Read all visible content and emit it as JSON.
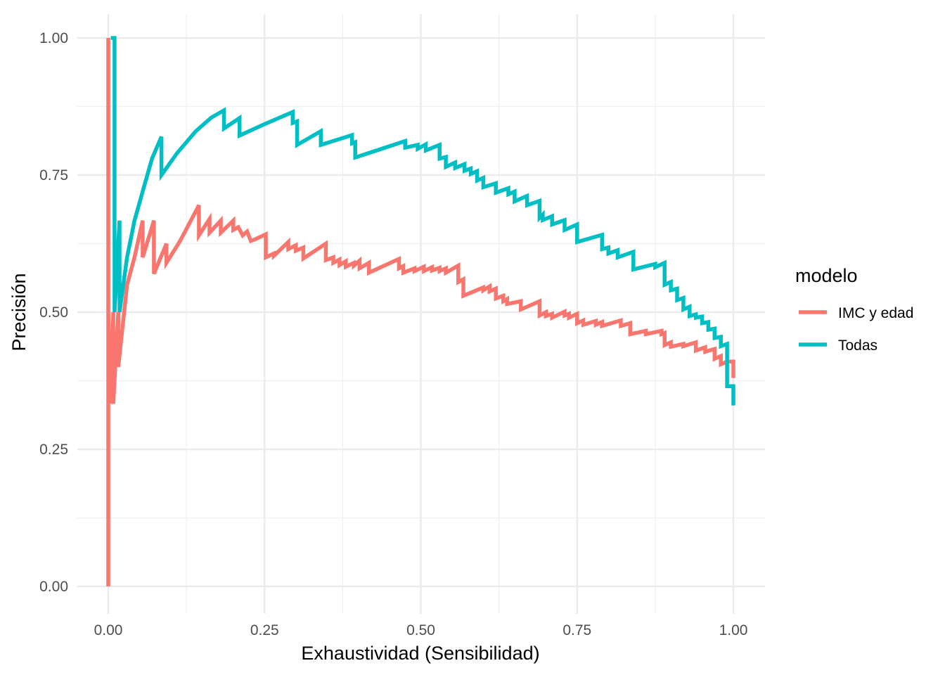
{
  "chart_data": {
    "type": "line",
    "xlabel": "Exhaustividad (Sensibilidad)",
    "ylabel": "Precisión",
    "xlim": [
      0,
      1
    ],
    "ylim": [
      0,
      1
    ],
    "x_ticks": [
      "0.00",
      "0.25",
      "0.50",
      "0.75",
      "1.00"
    ],
    "y_ticks": [
      "0.00",
      "0.25",
      "0.50",
      "0.75",
      "1.00"
    ],
    "grid": true,
    "legend": {
      "title": "modelo",
      "position": "right",
      "entries": [
        "IMC y edad",
        "Todas"
      ]
    },
    "series": [
      {
        "name": "IMC y edad",
        "color": "#F8766D",
        "points": [
          [
            0.0,
            0.0
          ],
          [
            0.0,
            1.0
          ],
          [
            0.0,
            0.5
          ],
          [
            0.004,
            0.333
          ],
          [
            0.008,
            0.5
          ],
          [
            0.008,
            0.333
          ],
          [
            0.016,
            0.5
          ],
          [
            0.016,
            0.4
          ],
          [
            0.03,
            0.55
          ],
          [
            0.042,
            0.6
          ],
          [
            0.055,
            0.667
          ],
          [
            0.055,
            0.6
          ],
          [
            0.073,
            0.667
          ],
          [
            0.073,
            0.57
          ],
          [
            0.093,
            0.625
          ],
          [
            0.093,
            0.59
          ],
          [
            0.115,
            0.63
          ],
          [
            0.145,
            0.695
          ],
          [
            0.145,
            0.64
          ],
          [
            0.162,
            0.67
          ],
          [
            0.162,
            0.645
          ],
          [
            0.18,
            0.667
          ],
          [
            0.18,
            0.645
          ],
          [
            0.2,
            0.667
          ],
          [
            0.2,
            0.65
          ],
          [
            0.208,
            0.655
          ],
          [
            0.215,
            0.64
          ],
          [
            0.222,
            0.647
          ],
          [
            0.228,
            0.63
          ],
          [
            0.235,
            0.633
          ],
          [
            0.252,
            0.642
          ],
          [
            0.252,
            0.6
          ],
          [
            0.265,
            0.607
          ],
          [
            0.265,
            0.603
          ],
          [
            0.288,
            0.628
          ],
          [
            0.288,
            0.615
          ],
          [
            0.3,
            0.622
          ],
          [
            0.3,
            0.612
          ],
          [
            0.312,
            0.618
          ],
          [
            0.312,
            0.598
          ],
          [
            0.348,
            0.625
          ],
          [
            0.348,
            0.595
          ],
          [
            0.36,
            0.6
          ],
          [
            0.36,
            0.59
          ],
          [
            0.37,
            0.596
          ],
          [
            0.37,
            0.586
          ],
          [
            0.38,
            0.593
          ],
          [
            0.38,
            0.583
          ],
          [
            0.393,
            0.59
          ],
          [
            0.393,
            0.585
          ],
          [
            0.402,
            0.594
          ],
          [
            0.402,
            0.58
          ],
          [
            0.417,
            0.59
          ],
          [
            0.417,
            0.572
          ],
          [
            0.465,
            0.597
          ],
          [
            0.465,
            0.58
          ],
          [
            0.472,
            0.584
          ],
          [
            0.472,
            0.572
          ],
          [
            0.49,
            0.58
          ],
          [
            0.49,
            0.575
          ],
          [
            0.505,
            0.583
          ],
          [
            0.505,
            0.575
          ],
          [
            0.518,
            0.582
          ],
          [
            0.518,
            0.576
          ],
          [
            0.53,
            0.581
          ],
          [
            0.53,
            0.575
          ],
          [
            0.54,
            0.58
          ],
          [
            0.54,
            0.572
          ],
          [
            0.56,
            0.585
          ],
          [
            0.56,
            0.555
          ],
          [
            0.568,
            0.56
          ],
          [
            0.568,
            0.53
          ],
          [
            0.6,
            0.545
          ],
          [
            0.6,
            0.54
          ],
          [
            0.61,
            0.547
          ],
          [
            0.61,
            0.538
          ],
          [
            0.62,
            0.543
          ],
          [
            0.62,
            0.525
          ],
          [
            0.632,
            0.53
          ],
          [
            0.632,
            0.52
          ],
          [
            0.638,
            0.524
          ],
          [
            0.638,
            0.515
          ],
          [
            0.66,
            0.52
          ],
          [
            0.66,
            0.505
          ],
          [
            0.69,
            0.52
          ],
          [
            0.69,
            0.494
          ],
          [
            0.7,
            0.5
          ],
          [
            0.7,
            0.493
          ],
          [
            0.71,
            0.497
          ],
          [
            0.71,
            0.49
          ],
          [
            0.73,
            0.501
          ],
          [
            0.73,
            0.494
          ],
          [
            0.737,
            0.497
          ],
          [
            0.737,
            0.49
          ],
          [
            0.75,
            0.497
          ],
          [
            0.75,
            0.48
          ],
          [
            0.76,
            0.485
          ],
          [
            0.76,
            0.477
          ],
          [
            0.78,
            0.484
          ],
          [
            0.78,
            0.477
          ],
          [
            0.79,
            0.482
          ],
          [
            0.79,
            0.475
          ],
          [
            0.82,
            0.485
          ],
          [
            0.82,
            0.475
          ],
          [
            0.835,
            0.48
          ],
          [
            0.835,
            0.46
          ],
          [
            0.86,
            0.466
          ],
          [
            0.86,
            0.46
          ],
          [
            0.885,
            0.466
          ],
          [
            0.885,
            0.46
          ],
          [
            0.89,
            0.462
          ],
          [
            0.89,
            0.44
          ],
          [
            0.9,
            0.445
          ],
          [
            0.9,
            0.437
          ],
          [
            0.92,
            0.442
          ],
          [
            0.92,
            0.438
          ],
          [
            0.94,
            0.445
          ],
          [
            0.94,
            0.43
          ],
          [
            0.955,
            0.436
          ],
          [
            0.955,
            0.428
          ],
          [
            0.97,
            0.433
          ],
          [
            0.97,
            0.415
          ],
          [
            0.98,
            0.42
          ],
          [
            0.98,
            0.405
          ],
          [
            0.99,
            0.41
          ],
          [
            1.0,
            0.41
          ],
          [
            1.0,
            0.38
          ]
        ]
      },
      {
        "name": "Todas",
        "color": "#00BFC4",
        "points": [
          [
            0.004,
            1.0
          ],
          [
            0.01,
            1.0
          ],
          [
            0.01,
            0.5
          ],
          [
            0.018,
            0.667
          ],
          [
            0.018,
            0.5
          ],
          [
            0.03,
            0.6
          ],
          [
            0.042,
            0.667
          ],
          [
            0.055,
            0.72
          ],
          [
            0.07,
            0.78
          ],
          [
            0.085,
            0.82
          ],
          [
            0.085,
            0.75
          ],
          [
            0.11,
            0.79
          ],
          [
            0.14,
            0.83
          ],
          [
            0.165,
            0.855
          ],
          [
            0.185,
            0.868
          ],
          [
            0.185,
            0.835
          ],
          [
            0.21,
            0.854
          ],
          [
            0.21,
            0.822
          ],
          [
            0.25,
            0.843
          ],
          [
            0.295,
            0.865
          ],
          [
            0.295,
            0.845
          ],
          [
            0.302,
            0.848
          ],
          [
            0.302,
            0.805
          ],
          [
            0.34,
            0.83
          ],
          [
            0.34,
            0.805
          ],
          [
            0.39,
            0.823
          ],
          [
            0.39,
            0.808
          ],
          [
            0.395,
            0.81
          ],
          [
            0.395,
            0.782
          ],
          [
            0.475,
            0.812
          ],
          [
            0.475,
            0.8
          ],
          [
            0.495,
            0.805
          ],
          [
            0.495,
            0.798
          ],
          [
            0.508,
            0.806
          ],
          [
            0.508,
            0.795
          ],
          [
            0.53,
            0.805
          ],
          [
            0.53,
            0.78
          ],
          [
            0.54,
            0.783
          ],
          [
            0.54,
            0.765
          ],
          [
            0.555,
            0.773
          ],
          [
            0.555,
            0.763
          ],
          [
            0.57,
            0.77
          ],
          [
            0.57,
            0.758
          ],
          [
            0.58,
            0.762
          ],
          [
            0.58,
            0.752
          ],
          [
            0.59,
            0.757
          ],
          [
            0.59,
            0.74
          ],
          [
            0.6,
            0.745
          ],
          [
            0.6,
            0.728
          ],
          [
            0.62,
            0.735
          ],
          [
            0.62,
            0.718
          ],
          [
            0.64,
            0.726
          ],
          [
            0.64,
            0.715
          ],
          [
            0.65,
            0.72
          ],
          [
            0.65,
            0.702
          ],
          [
            0.67,
            0.712
          ],
          [
            0.67,
            0.695
          ],
          [
            0.69,
            0.703
          ],
          [
            0.69,
            0.672
          ],
          [
            0.695,
            0.678
          ],
          [
            0.695,
            0.668
          ],
          [
            0.71,
            0.675
          ],
          [
            0.71,
            0.66
          ],
          [
            0.73,
            0.668
          ],
          [
            0.73,
            0.65
          ],
          [
            0.75,
            0.66
          ],
          [
            0.75,
            0.628
          ],
          [
            0.79,
            0.641
          ],
          [
            0.79,
            0.615
          ],
          [
            0.8,
            0.618
          ],
          [
            0.8,
            0.607
          ],
          [
            0.815,
            0.613
          ],
          [
            0.815,
            0.6
          ],
          [
            0.84,
            0.61
          ],
          [
            0.84,
            0.578
          ],
          [
            0.875,
            0.588
          ],
          [
            0.875,
            0.582
          ],
          [
            0.89,
            0.59
          ],
          [
            0.89,
            0.55
          ],
          [
            0.9,
            0.555
          ],
          [
            0.9,
            0.54
          ],
          [
            0.91,
            0.543
          ],
          [
            0.91,
            0.522
          ],
          [
            0.92,
            0.526
          ],
          [
            0.92,
            0.505
          ],
          [
            0.93,
            0.51
          ],
          [
            0.93,
            0.493
          ],
          [
            0.94,
            0.496
          ],
          [
            0.94,
            0.49
          ],
          [
            0.95,
            0.492
          ],
          [
            0.95,
            0.48
          ],
          [
            0.96,
            0.482
          ],
          [
            0.96,
            0.468
          ],
          [
            0.97,
            0.47
          ],
          [
            0.97,
            0.453
          ],
          [
            0.98,
            0.455
          ],
          [
            0.98,
            0.438
          ],
          [
            0.99,
            0.442
          ],
          [
            0.99,
            0.365
          ],
          [
            1.0,
            0.365
          ],
          [
            1.0,
            0.33
          ]
        ]
      }
    ]
  }
}
